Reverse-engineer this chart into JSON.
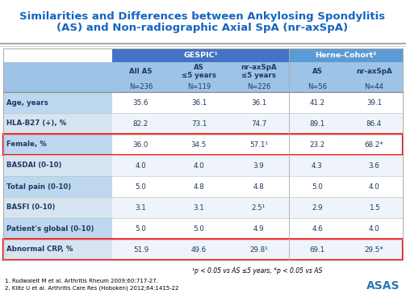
{
  "title_line1": "Similarities and Differences between Ankylosing Spondylitis",
  "title_line2": "(AS) and Non-radiographic Axial SpA (nr-axSpA)",
  "title_color": "#1565C0",
  "bg_color": "#FFFFFF",
  "header_blue_dark": "#4472C4",
  "header_blue_mid": "#5B9BD5",
  "header_blue_light": "#9DC3E6",
  "row_label_bg": "#BDD7EE",
  "row_data_bg_alt": "#DEEAF1",
  "col_headers_top": [
    "GESPIC¹",
    "Herne-Cohort²"
  ],
  "col_headers_mid": [
    "All AS",
    "AS\n≤5 years",
    "nr-axSpA\n≤5 years",
    "AS",
    "nr-axSpA"
  ],
  "col_headers_n": [
    "N=236",
    "N=119",
    "N=226",
    "N=56",
    "N=44"
  ],
  "rows": [
    [
      "Age, years",
      "35.6",
      "36.1",
      "36.1",
      "41.2",
      "39.1",
      false
    ],
    [
      "HLA-B27 (+), %",
      "82.2",
      "73.1",
      "74.7",
      "89.1",
      "86.4",
      false
    ],
    [
      "Female, %",
      "36.0",
      "34.5",
      "57.1¹",
      "23.2",
      "68.2*",
      true
    ],
    [
      "BASDAI (0-10)",
      "4.0",
      "4.0",
      "3.9",
      "4.3",
      "3.6",
      false
    ],
    [
      "Total pain (0-10)",
      "5.0",
      "4.8",
      "4.8",
      "5.0",
      "4.0",
      false
    ],
    [
      "BASFI (0-10)",
      "3.1",
      "3.1",
      "2.5¹",
      "2.9",
      "1.5",
      false
    ],
    [
      "Patient's global (0-10)",
      "5.0",
      "5.0",
      "4.9",
      "4.6",
      "4.0",
      false
    ],
    [
      "Abnormal CRP, %",
      "51.9",
      "49.6",
      "29.8¹",
      "69.1",
      "29.5*",
      true
    ]
  ],
  "footnote": "¹p < 0.05 vs AS ≤5 years, *p < 0.05 vs AS",
  "ref1": "1. Rudwaleit M et al. Arthritis Rheum 2009;60:717-27.",
  "ref2": "2. Kiltz U et al. Arthritis Care Res (Hoboken) 2012;64:1415-22",
  "sep_line_color": "#A0A0A0",
  "cell_border_color": "#C0C0C0"
}
